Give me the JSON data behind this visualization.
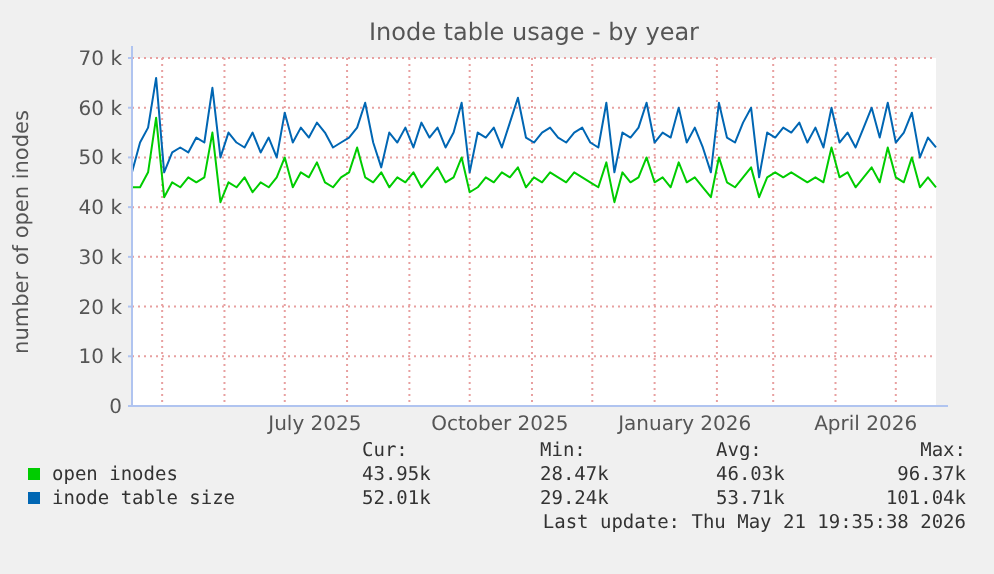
{
  "chart_data": {
    "type": "line",
    "title": "Inode table usage - by year",
    "ylabel": "number of open inodes",
    "x": [
      "2025-04-16",
      "2025-04-20",
      "2025-04-24",
      "2025-04-28",
      "2025-05-02",
      "2025-05-06",
      "2025-05-10",
      "2025-05-14",
      "2025-05-18",
      "2025-05-22",
      "2025-05-26",
      "2025-05-30",
      "2025-06-03",
      "2025-06-07",
      "2025-06-11",
      "2025-06-15",
      "2025-06-19",
      "2025-06-23",
      "2025-06-27",
      "2025-07-01",
      "2025-07-05",
      "2025-07-09",
      "2025-07-13",
      "2025-07-17",
      "2025-07-21",
      "2025-07-25",
      "2025-07-29",
      "2025-08-02",
      "2025-08-06",
      "2025-08-10",
      "2025-08-14",
      "2025-08-18",
      "2025-08-22",
      "2025-08-26",
      "2025-08-30",
      "2025-09-03",
      "2025-09-07",
      "2025-09-11",
      "2025-09-15",
      "2025-09-19",
      "2025-09-23",
      "2025-09-27",
      "2025-10-01",
      "2025-10-05",
      "2025-10-09",
      "2025-10-13",
      "2025-10-17",
      "2025-10-21",
      "2025-10-25",
      "2025-10-29",
      "2025-11-02",
      "2025-11-06",
      "2025-11-10",
      "2025-11-14",
      "2025-11-18",
      "2025-11-22",
      "2025-11-26",
      "2025-11-30",
      "2025-12-04",
      "2025-12-08",
      "2025-12-12",
      "2025-12-16",
      "2025-12-20",
      "2025-12-24",
      "2025-12-28",
      "2026-01-01",
      "2026-01-05",
      "2026-01-09",
      "2026-01-13",
      "2026-01-17",
      "2026-01-21",
      "2026-01-25",
      "2026-01-29",
      "2026-02-02",
      "2026-02-06",
      "2026-02-10",
      "2026-02-14",
      "2026-02-18",
      "2026-02-22",
      "2026-02-26",
      "2026-03-02",
      "2026-03-06",
      "2026-03-10",
      "2026-03-14",
      "2026-03-18",
      "2026-03-22",
      "2026-03-26",
      "2026-03-30",
      "2026-04-03",
      "2026-04-07",
      "2026-04-11",
      "2026-04-15",
      "2026-04-19",
      "2026-04-23",
      "2026-04-27",
      "2026-05-01",
      "2026-05-05",
      "2026-05-09",
      "2026-05-13",
      "2026-05-17",
      "2026-05-21"
    ],
    "series": [
      {
        "name": "open inodes",
        "color": "#00cc00",
        "values": [
          44000,
          44000,
          47000,
          58000,
          42000,
          45000,
          44000,
          46000,
          45000,
          46000,
          55000,
          41000,
          45000,
          44000,
          46000,
          43000,
          45000,
          44000,
          46000,
          50000,
          44000,
          47000,
          46000,
          49000,
          45000,
          44000,
          46000,
          47000,
          52000,
          46000,
          45000,
          47000,
          44000,
          46000,
          45000,
          47000,
          44000,
          46000,
          48000,
          45000,
          46000,
          50000,
          43000,
          44000,
          46000,
          45000,
          47000,
          46000,
          48000,
          44000,
          46000,
          45000,
          47000,
          46000,
          45000,
          47000,
          46000,
          45000,
          44000,
          49000,
          41000,
          47000,
          45000,
          46000,
          50000,
          45000,
          46000,
          44000,
          49000,
          45000,
          46000,
          44000,
          42000,
          50000,
          45000,
          44000,
          46000,
          48000,
          42000,
          46000,
          47000,
          46000,
          47000,
          46000,
          45000,
          46000,
          45000,
          52000,
          46000,
          47000,
          44000,
          46000,
          48000,
          45000,
          52000,
          46000,
          45000,
          50000,
          44000,
          46000,
          44000
        ]
      },
      {
        "name": "inode table size",
        "color": "#0066b3",
        "values": [
          47000,
          53000,
          56000,
          66000,
          47000,
          51000,
          52000,
          51000,
          54000,
          53000,
          64000,
          50000,
          55000,
          53000,
          52000,
          55000,
          51000,
          54000,
          50000,
          59000,
          53000,
          56000,
          54000,
          57000,
          55000,
          52000,
          53000,
          54000,
          56000,
          61000,
          53000,
          48000,
          55000,
          53000,
          56000,
          52000,
          57000,
          54000,
          56000,
          52000,
          55000,
          61000,
          47000,
          55000,
          54000,
          56000,
          52000,
          57000,
          62000,
          54000,
          53000,
          55000,
          56000,
          54000,
          53000,
          55000,
          56000,
          53000,
          52000,
          61000,
          47000,
          55000,
          54000,
          56000,
          61000,
          53000,
          55000,
          54000,
          60000,
          53000,
          56000,
          52000,
          47000,
          61000,
          54000,
          53000,
          57000,
          60000,
          46000,
          55000,
          54000,
          56000,
          55000,
          57000,
          53000,
          56000,
          52000,
          60000,
          53000,
          55000,
          52000,
          56000,
          60000,
          54000,
          61000,
          53000,
          55000,
          59000,
          50000,
          54000,
          52000
        ]
      }
    ],
    "xlim": [
      "2025-04-16",
      "2026-05-21"
    ],
    "xticks": [
      {
        "value": "2025-05-01",
        "label": null
      },
      {
        "value": "2025-06-01",
        "label": null
      },
      {
        "value": "2025-07-01",
        "label": null
      },
      {
        "value": "2025-07-16",
        "label": "July 2025"
      },
      {
        "value": "2025-08-01",
        "label": null
      },
      {
        "value": "2025-09-01",
        "label": null
      },
      {
        "value": "2025-10-01",
        "label": null
      },
      {
        "value": "2025-10-16",
        "label": "October 2025"
      },
      {
        "value": "2025-11-01",
        "label": null
      },
      {
        "value": "2025-12-01",
        "label": null
      },
      {
        "value": "2026-01-01",
        "label": null
      },
      {
        "value": "2026-01-16",
        "label": "January 2026"
      },
      {
        "value": "2026-02-01",
        "label": null
      },
      {
        "value": "2026-03-01",
        "label": null
      },
      {
        "value": "2026-04-01",
        "label": null
      },
      {
        "value": "2026-04-16",
        "label": "April 2026"
      },
      {
        "value": "2026-05-01",
        "label": null
      }
    ],
    "ylim": [
      0,
      70000
    ],
    "yticks": [
      0,
      {
        "value": 10000,
        "label": "10 k"
      },
      {
        "value": 20000,
        "label": "20 k"
      },
      {
        "value": 30000,
        "label": "30 k"
      },
      {
        "value": 40000,
        "label": "40 k"
      },
      {
        "value": 50000,
        "label": "50 k"
      },
      {
        "value": 60000,
        "label": "60 k"
      },
      {
        "value": 70000,
        "label": "70 k"
      }
    ],
    "grid": true,
    "legend": "bottom left",
    "line_style": "solid",
    "annotations": [
      "Cur:",
      "Min:",
      "Avg:",
      "Max:",
      "43.95k",
      "28.47k",
      "46.03k",
      "96.37k",
      "52.01k",
      "29.24k",
      "53.71k",
      "101.04k",
      "Last update: Thu May 21 19:35:38 2026"
    ]
  }
}
